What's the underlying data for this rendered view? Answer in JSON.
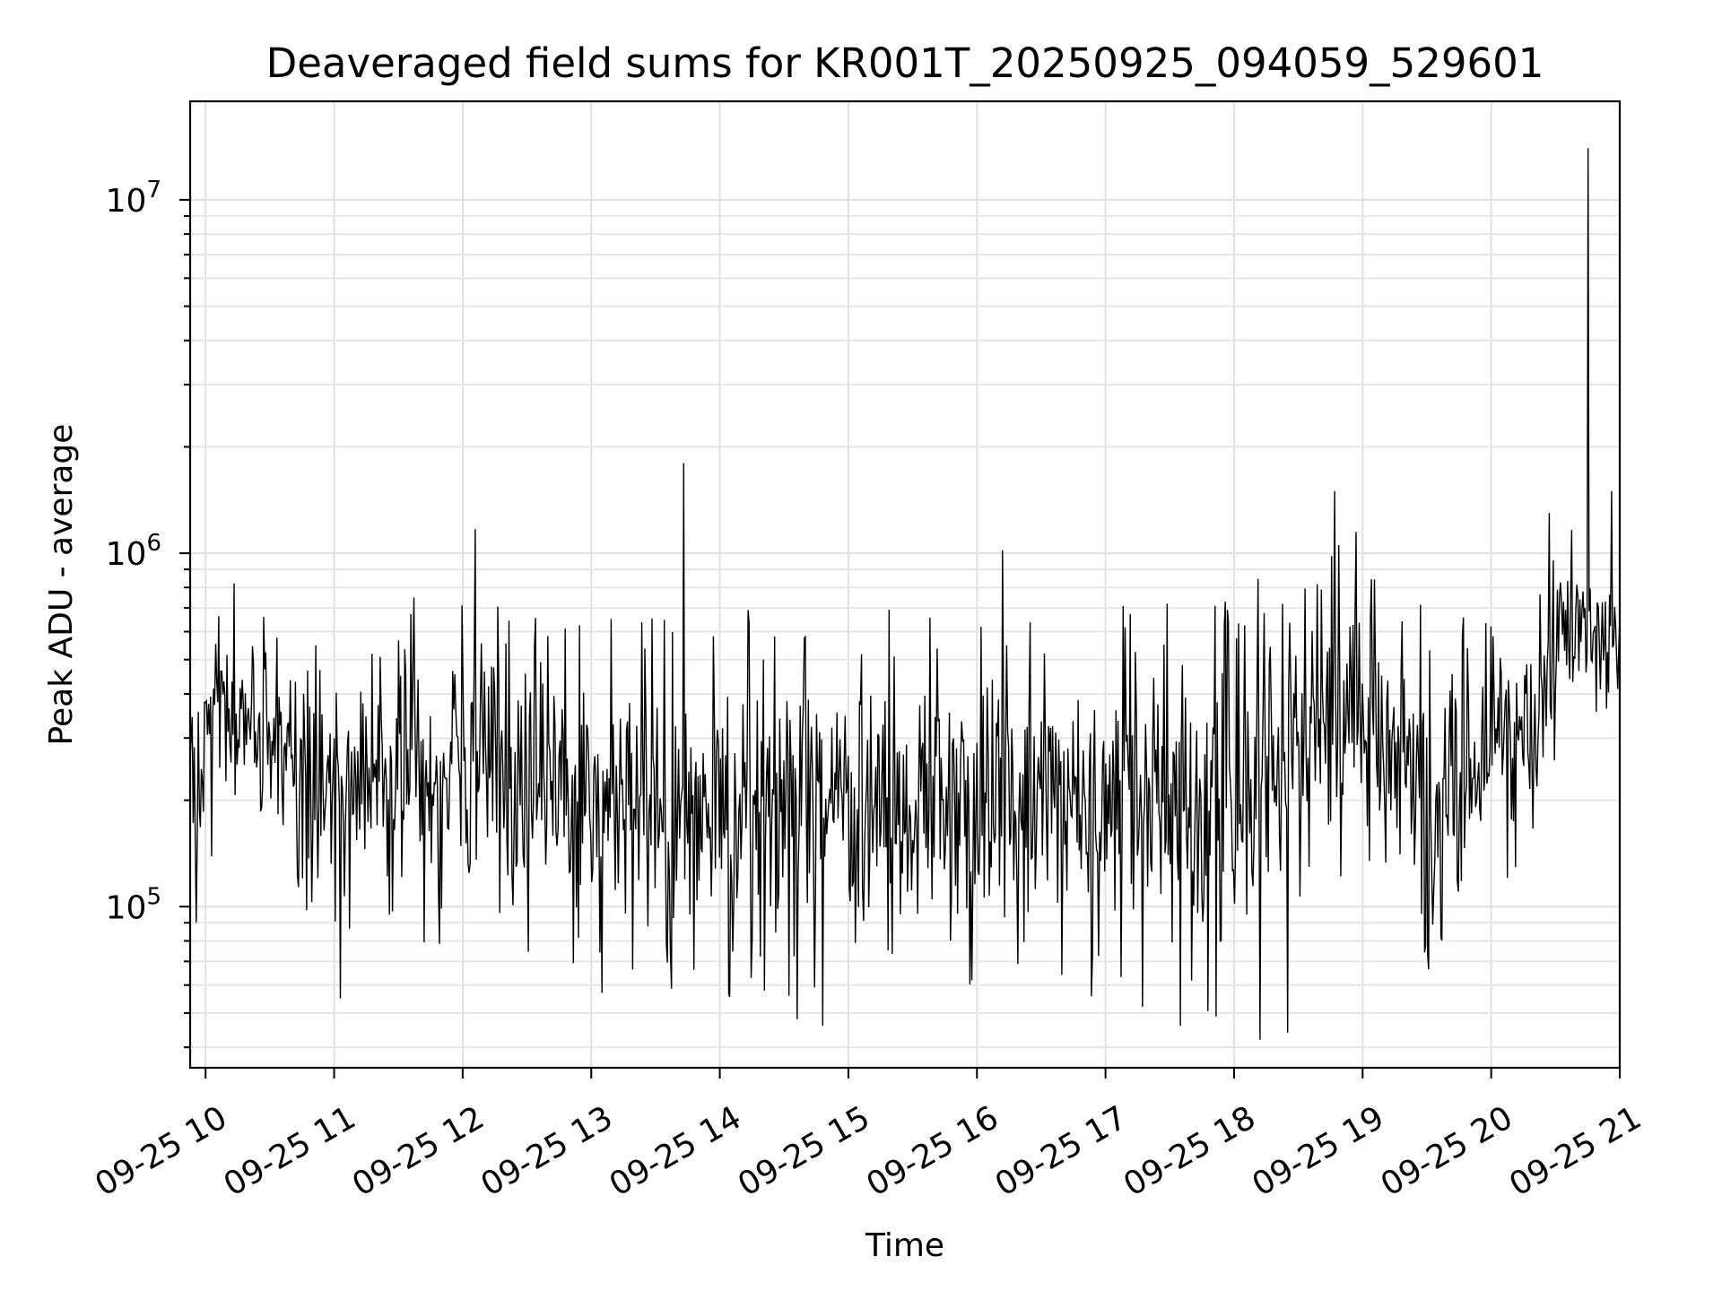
{
  "chart_data": {
    "type": "line",
    "title": "Deaveraged field sums for KR001T_20250925_094059_529601",
    "xlabel": "Time",
    "ylabel": "Peak ADU - average",
    "x_tick_labels": [
      "09-25 10",
      "09-25 11",
      "09-25 12",
      "09-25 13",
      "09-25 14",
      "09-25 15",
      "09-25 16",
      "09-25 17",
      "09-25 18",
      "09-25 19",
      "09-25 20",
      "09-25 21"
    ],
    "x_tick_hours": [
      10,
      11,
      12,
      13,
      14,
      15,
      16,
      17,
      18,
      19,
      20,
      21
    ],
    "xlim_hours": [
      9.88,
      21.0
    ],
    "y_scale": "log",
    "ylim": [
      35000,
      19000000
    ],
    "y_tick_values": [
      100000,
      1000000,
      10000000
    ],
    "y_tick_exponents": [
      "5",
      "6",
      "7"
    ],
    "grid": "major-and-minor",
    "line_color": "#000000",
    "series": [
      {
        "x_hours_start": 9.88,
        "x_hours_end": 21.0,
        "n_points": 1400,
        "typical_y": 320000,
        "envelope": [
          {
            "x_hours": 9.9,
            "low": 100000,
            "high": 580000
          },
          {
            "x_hours": 10.2,
            "low": 180000,
            "high": 900000
          },
          {
            "x_hours": 11.0,
            "low": 70000,
            "high": 600000
          },
          {
            "x_hours": 12.0,
            "low": 80000,
            "high": 900000
          },
          {
            "x_hours": 13.0,
            "low": 60000,
            "high": 850000
          },
          {
            "x_hours": 14.0,
            "low": 55000,
            "high": 700000
          },
          {
            "x_hours": 15.0,
            "low": 55000,
            "high": 700000
          },
          {
            "x_hours": 16.0,
            "low": 55000,
            "high": 750000
          },
          {
            "x_hours": 17.0,
            "low": 55000,
            "high": 700000
          },
          {
            "x_hours": 18.0,
            "low": 45000,
            "high": 800000
          },
          {
            "x_hours": 18.8,
            "low": 120000,
            "high": 1200000
          },
          {
            "x_hours": 19.5,
            "low": 60000,
            "high": 700000
          },
          {
            "x_hours": 20.3,
            "low": 140000,
            "high": 700000
          },
          {
            "x_hours": 20.6,
            "low": 300000,
            "high": 1300000
          },
          {
            "x_hours": 21.0,
            "low": 380000,
            "high": 800000
          }
        ],
        "notable_points": [
          {
            "x_hours": 9.93,
            "y": 90000
          },
          {
            "x_hours": 11.05,
            "y": 55000
          },
          {
            "x_hours": 12.1,
            "y": 1170000
          },
          {
            "x_hours": 13.08,
            "y": 57000
          },
          {
            "x_hours": 13.72,
            "y": 1800000
          },
          {
            "x_hours": 14.6,
            "y": 48000
          },
          {
            "x_hours": 14.8,
            "y": 46000
          },
          {
            "x_hours": 16.2,
            "y": 1020000
          },
          {
            "x_hours": 17.58,
            "y": 46000
          },
          {
            "x_hours": 18.2,
            "y": 42000
          },
          {
            "x_hours": 18.42,
            "y": 44000
          },
          {
            "x_hours": 18.78,
            "y": 1500000
          },
          {
            "x_hours": 18.95,
            "y": 1150000
          },
          {
            "x_hours": 20.45,
            "y": 1300000
          },
          {
            "x_hours": 20.75,
            "y": 14000000
          },
          {
            "x_hours": 20.94,
            "y": 1500000
          }
        ]
      }
    ]
  }
}
